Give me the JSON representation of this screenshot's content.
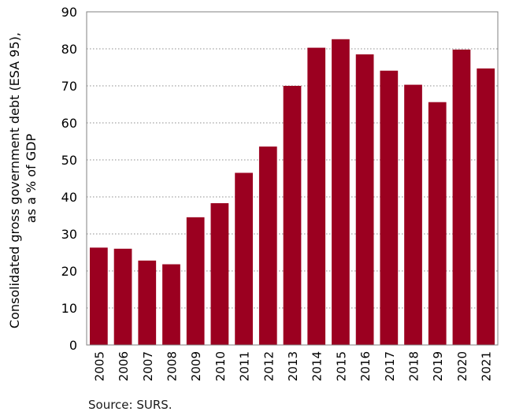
{
  "chart_data": {
    "type": "bar",
    "categories": [
      "2005",
      "2006",
      "2007",
      "2008",
      "2009",
      "2010",
      "2011",
      "2012",
      "2013",
      "2014",
      "2015",
      "2016",
      "2017",
      "2018",
      "2019",
      "2020",
      "2021"
    ],
    "values": [
      26.3,
      26.0,
      22.8,
      21.8,
      34.5,
      38.3,
      46.5,
      53.6,
      70.0,
      80.3,
      82.6,
      78.5,
      74.1,
      70.3,
      65.6,
      79.8,
      74.7
    ],
    "ylabel_line1": "Consolidated gross government debt (ESA 95),",
    "ylabel_line2": "as a % of GDP",
    "xlabel": "",
    "ylim": [
      0,
      90
    ],
    "yticks": [
      0,
      10,
      20,
      30,
      40,
      50,
      60,
      70,
      80,
      90
    ],
    "grid": "horizontal dotted",
    "bar_color": "#9b0020",
    "source": "Source: SURS."
  }
}
